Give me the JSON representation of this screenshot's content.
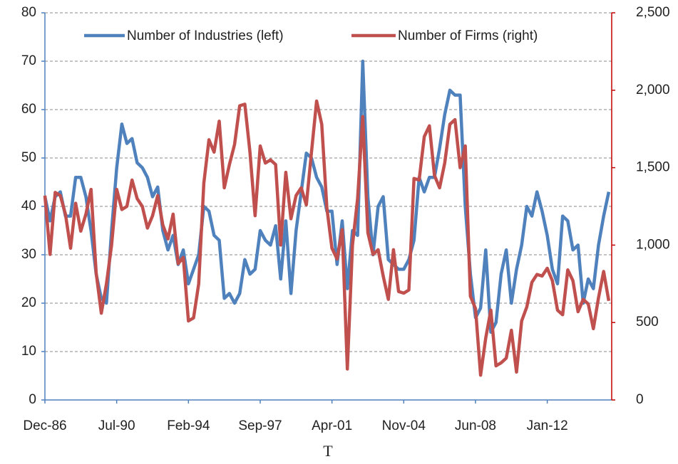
{
  "chart_data": {
    "type": "line",
    "xlabel": "T",
    "categories": [
      "Dec-86",
      null,
      null,
      null,
      null,
      null,
      null,
      null,
      null,
      null,
      null,
      null,
      null,
      null,
      "Jul-90",
      null,
      null,
      null,
      null,
      null,
      null,
      null,
      null,
      null,
      null,
      null,
      null,
      null,
      "Feb-94",
      null,
      null,
      null,
      null,
      null,
      null,
      null,
      null,
      null,
      null,
      null,
      null,
      null,
      "Sep-97",
      null,
      null,
      null,
      null,
      null,
      null,
      null,
      null,
      null,
      null,
      null,
      null,
      null,
      "Apr-01",
      null,
      null,
      null,
      null,
      null,
      null,
      null,
      null,
      null,
      null,
      null,
      null,
      null,
      "Nov-04",
      null,
      null,
      null,
      null,
      null,
      null,
      null,
      null,
      null,
      null,
      null,
      null,
      null,
      "Jun-08",
      null,
      null,
      null,
      null,
      null,
      null,
      null,
      null,
      null,
      null,
      null,
      null,
      null,
      "Jan-12",
      null,
      null,
      null,
      null,
      null,
      null,
      null,
      null,
      null,
      null,
      null,
      null
    ],
    "series": [
      {
        "name": "Number of Industries (left)",
        "color": "#4f81bd",
        "axis": "y",
        "values": [
          42,
          37,
          42,
          43,
          38,
          38,
          46,
          46,
          42,
          35,
          26,
          21,
          20,
          35,
          48,
          57,
          53,
          54,
          49,
          48,
          46,
          42,
          44,
          35,
          31,
          34,
          28,
          31,
          24,
          27,
          30,
          40,
          39,
          34,
          33,
          21,
          22,
          20,
          22,
          29,
          26,
          27,
          35,
          33,
          32,
          36,
          25,
          37,
          22,
          35,
          43,
          51,
          50,
          46,
          44,
          39,
          39,
          28,
          37,
          23,
          35,
          34,
          70,
          42,
          30,
          40,
          42,
          29,
          28,
          27,
          27,
          29,
          33,
          46,
          43,
          46,
          46,
          52,
          59,
          64,
          63,
          63,
          40,
          26,
          17,
          19,
          31,
          14,
          16,
          26,
          31,
          20,
          27,
          32,
          40,
          38,
          43,
          39,
          34,
          27,
          24,
          38,
          37,
          31,
          32,
          20,
          25,
          23,
          32,
          38,
          43
        ]
      },
      {
        "name": "Number of Firms (right)",
        "color": "#c0504d",
        "axis": "y2",
        "values": [
          1320,
          940,
          1340,
          1320,
          1200,
          980,
          1270,
          1090,
          1200,
          1360,
          820,
          560,
          750,
          1000,
          1360,
          1230,
          1250,
          1420,
          1300,
          1250,
          1110,
          1190,
          1320,
          1130,
          1040,
          1200,
          880,
          920,
          510,
          530,
          750,
          1400,
          1680,
          1600,
          1800,
          1370,
          1520,
          1650,
          1900,
          1910,
          1600,
          1190,
          1640,
          1530,
          1550,
          1520,
          1000,
          1470,
          1170,
          1320,
          1370,
          1260,
          1600,
          1930,
          1780,
          1240,
          980,
          910,
          1100,
          200,
          1000,
          1300,
          1830,
          1080,
          940,
          970,
          800,
          650,
          970,
          700,
          690,
          710,
          1430,
          1420,
          1700,
          1770,
          1450,
          1370,
          1530,
          1780,
          1810,
          1500,
          1640,
          670,
          590,
          160,
          400,
          580,
          220,
          240,
          270,
          450,
          180,
          510,
          600,
          760,
          810,
          800,
          850,
          770,
          580,
          550,
          840,
          770,
          570,
          650,
          620,
          460,
          660,
          830,
          640
        ]
      }
    ],
    "ylim": [
      0,
      80
    ],
    "yticks": [
      0,
      10,
      20,
      30,
      40,
      50,
      60,
      70,
      80
    ],
    "y2lim": [
      0,
      2500
    ],
    "y2ticks": [
      0,
      500,
      {
        "value": 1000,
        "label": "1,000"
      },
      {
        "value": 1500,
        "label": "1,500"
      },
      {
        "value": 2000,
        "label": "2,000"
      },
      {
        "value": 2500,
        "label": "2,500"
      }
    ],
    "grid": true,
    "legend": "top"
  }
}
